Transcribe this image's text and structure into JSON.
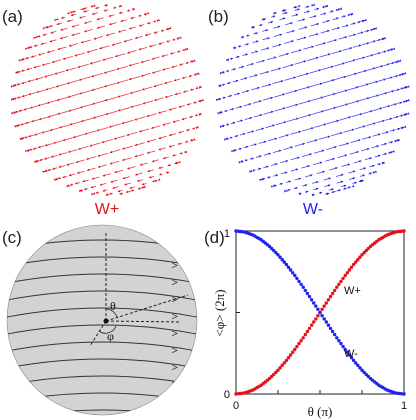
{
  "panels": {
    "a": {
      "label": "(a)",
      "caption": "W+",
      "color": "#e3121b"
    },
    "b": {
      "label": "(b)",
      "caption": "W-",
      "color": "#2222ee"
    },
    "c": {
      "label": "(c)",
      "theta_symbol": "θ",
      "phi_symbol": "φ",
      "sphere_fill": "#d3d3d3"
    },
    "d": {
      "label": "(d)"
    }
  },
  "chart_data": {
    "type": "scatter",
    "xlabel": "θ (π)",
    "ylabel": "<φ> (2π)",
    "xlim": [
      0,
      1
    ],
    "ylim": [
      0,
      1
    ],
    "xticks": [
      "0",
      "0.5",
      "1"
    ],
    "yticks": [
      "0",
      "1"
    ],
    "series": [
      {
        "name": "W+",
        "color": "#e3121b",
        "x": [
          0,
          0.05,
          0.1,
          0.15,
          0.2,
          0.25,
          0.3,
          0.35,
          0.4,
          0.45,
          0.5,
          0.55,
          0.6,
          0.65,
          0.7,
          0.75,
          0.8,
          0.85,
          0.9,
          0.95,
          1
        ],
        "values": [
          0,
          0.006,
          0.024,
          0.054,
          0.095,
          0.146,
          0.206,
          0.273,
          0.345,
          0.422,
          0.5,
          0.578,
          0.655,
          0.727,
          0.794,
          0.854,
          0.905,
          0.946,
          0.976,
          0.994,
          1
        ]
      },
      {
        "name": "W-",
        "color": "#2222ee",
        "x": [
          0,
          0.05,
          0.1,
          0.15,
          0.2,
          0.25,
          0.3,
          0.35,
          0.4,
          0.45,
          0.5,
          0.55,
          0.6,
          0.65,
          0.7,
          0.75,
          0.8,
          0.85,
          0.9,
          0.95,
          1
        ],
        "values": [
          1,
          0.994,
          0.976,
          0.946,
          0.905,
          0.854,
          0.794,
          0.727,
          0.655,
          0.578,
          0.5,
          0.422,
          0.345,
          0.273,
          0.206,
          0.146,
          0.095,
          0.054,
          0.024,
          0.006,
          0
        ]
      }
    ]
  }
}
